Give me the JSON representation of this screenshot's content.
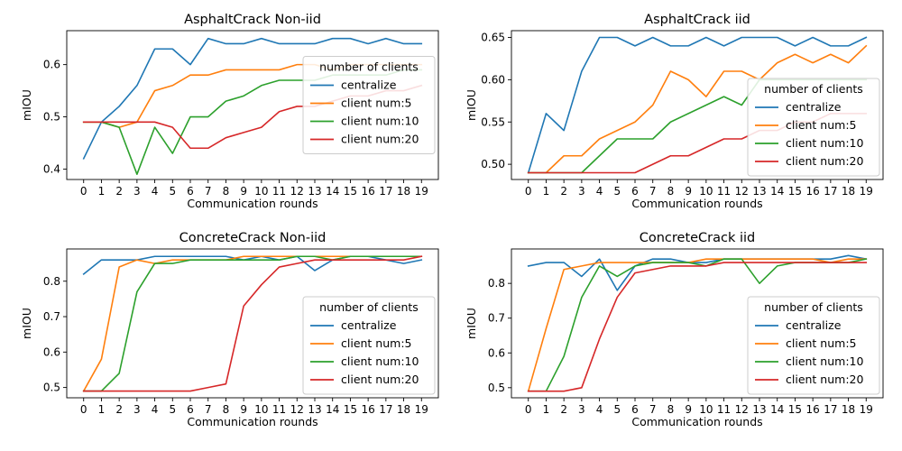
{
  "legend_title": "number of clients",
  "chart_data": [
    {
      "type": "line",
      "title": "AsphaltCrack Non-iid",
      "xlabel": "Communication rounds",
      "ylabel": "mIOU",
      "x": [
        0,
        1,
        2,
        3,
        4,
        5,
        6,
        7,
        8,
        9,
        10,
        11,
        12,
        13,
        14,
        15,
        16,
        17,
        18,
        19
      ],
      "ylim": [
        0.38,
        0.665
      ],
      "yticks": [
        0.4,
        0.5,
        0.6
      ],
      "ytick_labels": [
        "0.4",
        "0.5",
        "0.6"
      ],
      "legend_position": "center-right",
      "series": [
        {
          "name": "centralize",
          "color": "#1f77b4",
          "values": [
            0.42,
            0.49,
            0.52,
            0.56,
            0.63,
            0.63,
            0.6,
            0.65,
            0.64,
            0.64,
            0.65,
            0.64,
            0.64,
            0.64,
            0.65,
            0.65,
            0.64,
            0.65,
            0.64,
            0.64
          ]
        },
        {
          "name": "client num:5",
          "color": "#ff7f0e",
          "values": [
            0.49,
            0.49,
            0.48,
            0.49,
            0.55,
            0.56,
            0.58,
            0.58,
            0.59,
            0.59,
            0.59,
            0.59,
            0.6,
            0.6,
            0.59,
            0.6,
            0.6,
            0.6,
            0.6,
            0.6
          ]
        },
        {
          "name": "client num:10",
          "color": "#2ca02c",
          "values": [
            0.49,
            0.49,
            0.48,
            0.39,
            0.48,
            0.43,
            0.5,
            0.5,
            0.53,
            0.54,
            0.56,
            0.57,
            0.57,
            0.57,
            0.58,
            0.58,
            0.58,
            0.58,
            0.59,
            0.59
          ]
        },
        {
          "name": "client num:20",
          "color": "#d62728",
          "values": [
            0.49,
            0.49,
            0.49,
            0.49,
            0.49,
            0.48,
            0.44,
            0.44,
            0.46,
            0.47,
            0.48,
            0.51,
            0.52,
            0.52,
            0.53,
            0.54,
            0.54,
            0.55,
            0.55,
            0.56
          ]
        }
      ]
    },
    {
      "type": "line",
      "title": "AsphaltCrack iid",
      "xlabel": "Communication rounds",
      "ylabel": "mIOU",
      "x": [
        0,
        1,
        2,
        3,
        4,
        5,
        6,
        7,
        8,
        9,
        10,
        11,
        12,
        13,
        14,
        15,
        16,
        17,
        18,
        19
      ],
      "ylim": [
        0.482,
        0.658
      ],
      "yticks": [
        0.5,
        0.55,
        0.6,
        0.65
      ],
      "ytick_labels": [
        "0.50",
        "0.55",
        "0.60",
        "0.65"
      ],
      "legend_position": "lower-right",
      "series": [
        {
          "name": "centralize",
          "color": "#1f77b4",
          "values": [
            0.49,
            0.56,
            0.54,
            0.61,
            0.65,
            0.65,
            0.64,
            0.65,
            0.64,
            0.64,
            0.65,
            0.64,
            0.65,
            0.65,
            0.65,
            0.64,
            0.65,
            0.64,
            0.64,
            0.65
          ]
        },
        {
          "name": "client num:5",
          "color": "#ff7f0e",
          "values": [
            0.49,
            0.49,
            0.51,
            0.51,
            0.53,
            0.54,
            0.55,
            0.57,
            0.61,
            0.6,
            0.58,
            0.61,
            0.61,
            0.6,
            0.62,
            0.63,
            0.62,
            0.63,
            0.62,
            0.64
          ]
        },
        {
          "name": "client num:10",
          "color": "#2ca02c",
          "values": [
            0.49,
            0.49,
            0.49,
            0.49,
            0.51,
            0.53,
            0.53,
            0.53,
            0.55,
            0.56,
            0.57,
            0.58,
            0.57,
            0.6,
            0.6,
            0.6,
            0.6,
            0.6,
            0.6,
            0.6
          ]
        },
        {
          "name": "client num:20",
          "color": "#d62728",
          "values": [
            0.49,
            0.49,
            0.49,
            0.49,
            0.49,
            0.49,
            0.49,
            0.5,
            0.51,
            0.51,
            0.52,
            0.53,
            0.53,
            0.54,
            0.54,
            0.55,
            0.55,
            0.56,
            0.56,
            0.56
          ]
        }
      ]
    },
    {
      "type": "line",
      "title": "ConcreteCrack Non-iid",
      "xlabel": "Communication rounds",
      "ylabel": "mIOU",
      "x": [
        0,
        1,
        2,
        3,
        4,
        5,
        6,
        7,
        8,
        9,
        10,
        11,
        12,
        13,
        14,
        15,
        16,
        17,
        18,
        19
      ],
      "ylim": [
        0.471,
        0.891
      ],
      "yticks": [
        0.5,
        0.6,
        0.7,
        0.8
      ],
      "ytick_labels": [
        "0.5",
        "0.6",
        "0.7",
        "0.8"
      ],
      "legend_position": "lower-right",
      "series": [
        {
          "name": "centralize",
          "color": "#1f77b4",
          "values": [
            0.82,
            0.86,
            0.86,
            0.86,
            0.87,
            0.87,
            0.87,
            0.87,
            0.87,
            0.86,
            0.87,
            0.86,
            0.87,
            0.83,
            0.86,
            0.87,
            0.87,
            0.86,
            0.85,
            0.86
          ]
        },
        {
          "name": "client num:5",
          "color": "#ff7f0e",
          "values": [
            0.49,
            0.58,
            0.84,
            0.86,
            0.85,
            0.86,
            0.86,
            0.86,
            0.86,
            0.87,
            0.87,
            0.87,
            0.87,
            0.87,
            0.87,
            0.87,
            0.87,
            0.87,
            0.87,
            0.87
          ]
        },
        {
          "name": "client num:10",
          "color": "#2ca02c",
          "values": [
            0.49,
            0.49,
            0.54,
            0.77,
            0.85,
            0.85,
            0.86,
            0.86,
            0.86,
            0.86,
            0.86,
            0.86,
            0.87,
            0.87,
            0.86,
            0.87,
            0.87,
            0.87,
            0.87,
            0.87
          ]
        },
        {
          "name": "client num:20",
          "color": "#d62728",
          "values": [
            0.49,
            0.49,
            0.49,
            0.49,
            0.49,
            0.49,
            0.49,
            0.5,
            0.51,
            0.73,
            0.79,
            0.84,
            0.85,
            0.86,
            0.86,
            0.86,
            0.86,
            0.86,
            0.86,
            0.87
          ]
        }
      ]
    },
    {
      "type": "line",
      "title": "ConcreteCrack iid",
      "xlabel": "Communication rounds",
      "ylabel": "mIOU",
      "x": [
        0,
        1,
        2,
        3,
        4,
        5,
        6,
        7,
        8,
        9,
        10,
        11,
        12,
        13,
        14,
        15,
        16,
        17,
        18,
        19
      ],
      "ylim": [
        0.471,
        0.899
      ],
      "yticks": [
        0.5,
        0.6,
        0.7,
        0.8
      ],
      "ytick_labels": [
        "0.5",
        "0.6",
        "0.7",
        "0.8"
      ],
      "legend_position": "lower-right",
      "series": [
        {
          "name": "centralize",
          "color": "#1f77b4",
          "values": [
            0.85,
            0.86,
            0.86,
            0.82,
            0.87,
            0.78,
            0.85,
            0.87,
            0.87,
            0.86,
            0.86,
            0.87,
            0.87,
            0.87,
            0.87,
            0.87,
            0.87,
            0.87,
            0.88,
            0.87
          ]
        },
        {
          "name": "client num:5",
          "color": "#ff7f0e",
          "values": [
            0.49,
            0.67,
            0.84,
            0.85,
            0.86,
            0.86,
            0.86,
            0.86,
            0.86,
            0.86,
            0.87,
            0.87,
            0.87,
            0.87,
            0.87,
            0.87,
            0.87,
            0.86,
            0.87,
            0.87
          ]
        },
        {
          "name": "client num:10",
          "color": "#2ca02c",
          "values": [
            0.49,
            0.49,
            0.59,
            0.76,
            0.85,
            0.82,
            0.85,
            0.86,
            0.86,
            0.86,
            0.85,
            0.87,
            0.87,
            0.8,
            0.85,
            0.86,
            0.86,
            0.86,
            0.86,
            0.87
          ]
        },
        {
          "name": "client num:20",
          "color": "#d62728",
          "values": [
            0.49,
            0.49,
            0.49,
            0.5,
            0.64,
            0.76,
            0.83,
            0.84,
            0.85,
            0.85,
            0.85,
            0.86,
            0.86,
            0.86,
            0.86,
            0.86,
            0.86,
            0.86,
            0.86,
            0.86
          ]
        }
      ]
    }
  ]
}
